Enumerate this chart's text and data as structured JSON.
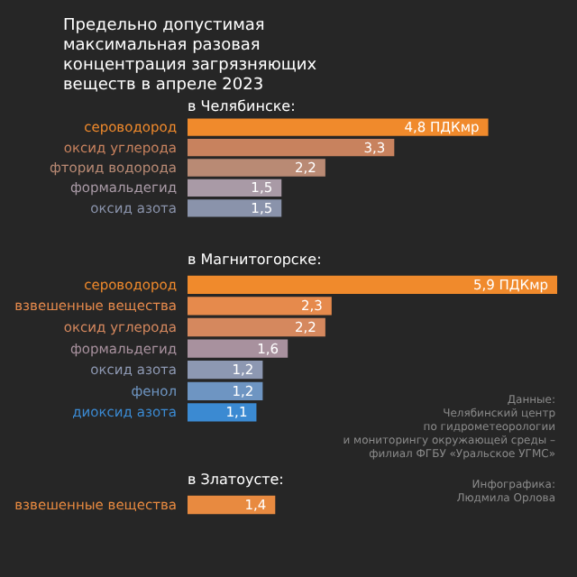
{
  "chart_data": [
    {
      "type": "bar",
      "orientation": "horizontal",
      "title": "Предельно допустимая максимальная разовая концентрация загрязняющих веществ в апреле 2023",
      "subtitle": "в Челябинске:",
      "categories": [
        "сероводород",
        "оксид углерода",
        "фторид водорода",
        "формальдегид",
        "оксид азота"
      ],
      "values": [
        4.8,
        3.3,
        2.2,
        1.5,
        1.5
      ],
      "colors": [
        "#f08a2c",
        "#c8825e",
        "#b98a74",
        "#a99aa6",
        "#8a93ab"
      ],
      "value_labels": [
        "4,8 ПДКмр",
        "3,3",
        "2,2",
        "1,5",
        "1,5"
      ]
    },
    {
      "type": "bar",
      "orientation": "horizontal",
      "subtitle": "в Магнитогорске:",
      "categories": [
        "сероводород",
        "взвешенные вещества",
        "оксид углерода",
        "формальдегид",
        "оксид азота",
        "фенол",
        "диоксид азота"
      ],
      "values": [
        5.9,
        2.3,
        2.2,
        1.6,
        1.2,
        1.2,
        1.1
      ],
      "colors": [
        "#f08a2c",
        "#e68a4c",
        "#d5885e",
        "#a8919e",
        "#8d98b2",
        "#6e95c2",
        "#3b8ad2"
      ],
      "value_labels": [
        "5,9 ПДКмр",
        "2,3",
        "2,2",
        "1,6",
        "1,2",
        "1,2",
        "1,1"
      ],
      "annotations": [
        "Данные:\nЧелябинский центр\nпо гидрометеорологии\nи мониторингу окружающей среды –\nфилиал ФГБУ «Уральское УГМС»"
      ]
    },
    {
      "type": "bar",
      "orientation": "horizontal",
      "subtitle": "в Златоусте:",
      "categories": [
        "взвешенные вещества"
      ],
      "values": [
        1.4
      ],
      "colors": [
        "#e88a40"
      ],
      "value_labels": [
        "1,4"
      ],
      "annotations": [
        "Инфографика:\nЛюдмила Орлова"
      ]
    }
  ]
}
